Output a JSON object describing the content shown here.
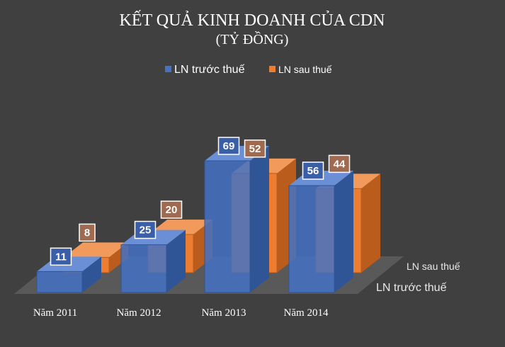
{
  "chart_data": {
    "type": "bar",
    "title": "KẾT QUẢ KINH DOANH CỦA CDN",
    "subtitle": "(TỶ ĐỒNG)",
    "categories": [
      "Năm 2011",
      "Năm 2012",
      "Năm 2013",
      "Năm 2014"
    ],
    "series": [
      {
        "name": "LN trước thuế",
        "values": [
          11,
          25,
          69,
          56
        ],
        "color": "#4472C4"
      },
      {
        "name": "LN sau thuế",
        "values": [
          8,
          20,
          52,
          44
        ],
        "color": "#ED7D31"
      }
    ],
    "legend_position": "top",
    "ylim": [
      0,
      75
    ],
    "grid": false,
    "three_d": true
  }
}
